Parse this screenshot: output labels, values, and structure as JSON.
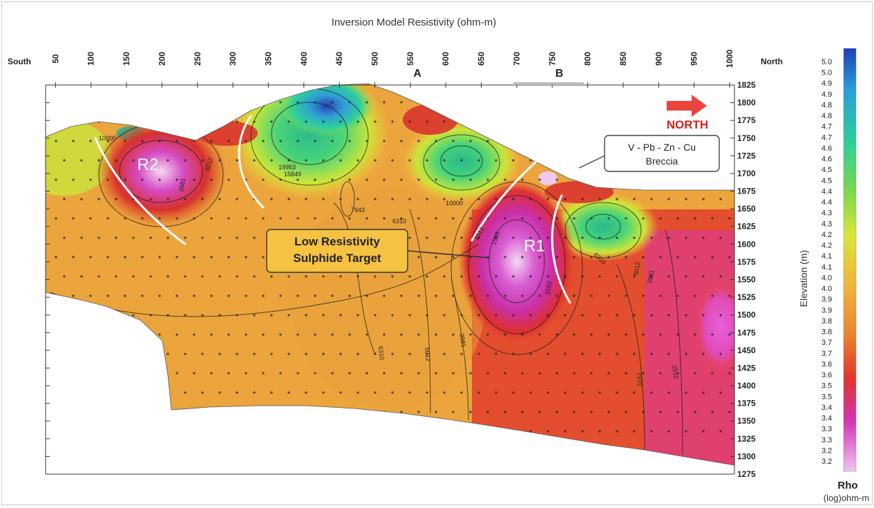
{
  "chart_data": {
    "type": "heatmap",
    "title": "Inversion Model Resistivity (ohm-m)",
    "x_ticks": [
      50,
      100,
      150,
      200,
      250,
      300,
      350,
      400,
      450,
      500,
      550,
      600,
      650,
      700,
      750,
      800,
      850,
      900,
      950,
      1000
    ],
    "x_tick_labels": [
      "50",
      "100",
      "150",
      "200",
      "250",
      "300",
      "350",
      "400",
      "450",
      "500",
      "550",
      "600",
      "650",
      "700",
      "750",
      "800",
      "850",
      "900",
      "950",
      "1000"
    ],
    "xlim": [
      0,
      1000
    ],
    "left_label": "South",
    "right_label": "North",
    "y_ticks": [
      1275,
      1300,
      1325,
      1350,
      1375,
      1400,
      1425,
      1450,
      1475,
      1500,
      1525,
      1550,
      1575,
      1600,
      1625,
      1650,
      1675,
      1700,
      1725,
      1750,
      1775,
      1800,
      1825
    ],
    "y_tick_labels": [
      "1275",
      "1300",
      "1325",
      "1350",
      "1375",
      "1400",
      "1425",
      "1450",
      "1475",
      "1500",
      "1525",
      "1550",
      "1575",
      "1600",
      "1625",
      "1650",
      "1675",
      "1700",
      "1725",
      "1750",
      "1775",
      "1800",
      "1825"
    ],
    "ylim": [
      1275,
      1825
    ],
    "ylabel": "Elevation (m)",
    "colorbar": {
      "labels": [
        "5.0",
        "5.0",
        "4.9",
        "4.9",
        "4.8",
        "4.8",
        "4.7",
        "4.7",
        "4.6",
        "4.6",
        "4.5",
        "4.5",
        "4.4",
        "4.4",
        "4.3",
        "4.3",
        "4.2",
        "4.2",
        "4.1",
        "4.1",
        "4.0",
        "4.0",
        "3.9",
        "3.9",
        "3.8",
        "3.8",
        "3.7",
        "3.7",
        "3.6",
        "3.6",
        "3.5",
        "3.5",
        "3.4",
        "3.4",
        "3.3",
        "3.3",
        "3.2",
        "3.2"
      ],
      "title": "Rho",
      "unit": "(log)ohm-m"
    },
    "section_markers": [
      {
        "label": "A",
        "x": 560
      },
      {
        "label": "B",
        "x": 760
      }
    ],
    "zone_labels": [
      {
        "label": "R2",
        "x": 180,
        "y": 1705
      },
      {
        "label": "R1",
        "x": 725,
        "y": 1590
      }
    ],
    "contour_labels": [
      "10000",
      "5012",
      "3981",
      "19953",
      "15849",
      "7943",
      "6310",
      "10000",
      "2512",
      "1995",
      "3162",
      "6310",
      "5012",
      "3981",
      "6310",
      "5012",
      "3981",
      "3162",
      "2512"
    ],
    "annotations": {
      "breccia": [
        "V - Pb - Zn - Cu",
        "Breccia"
      ],
      "target": [
        "Low Resistivity",
        "Sulphide Target"
      ],
      "direction": "NORTH"
    }
  },
  "colors": {
    "high": "#2b4fc7",
    "mid_high": "#27c59b",
    "mid": "#d8e83a",
    "mid_low": "#e9a23b",
    "low": "#e33b2e",
    "lowest": "#d93bc9",
    "target_box": "#f5c242",
    "arrow": "#e8231d"
  }
}
